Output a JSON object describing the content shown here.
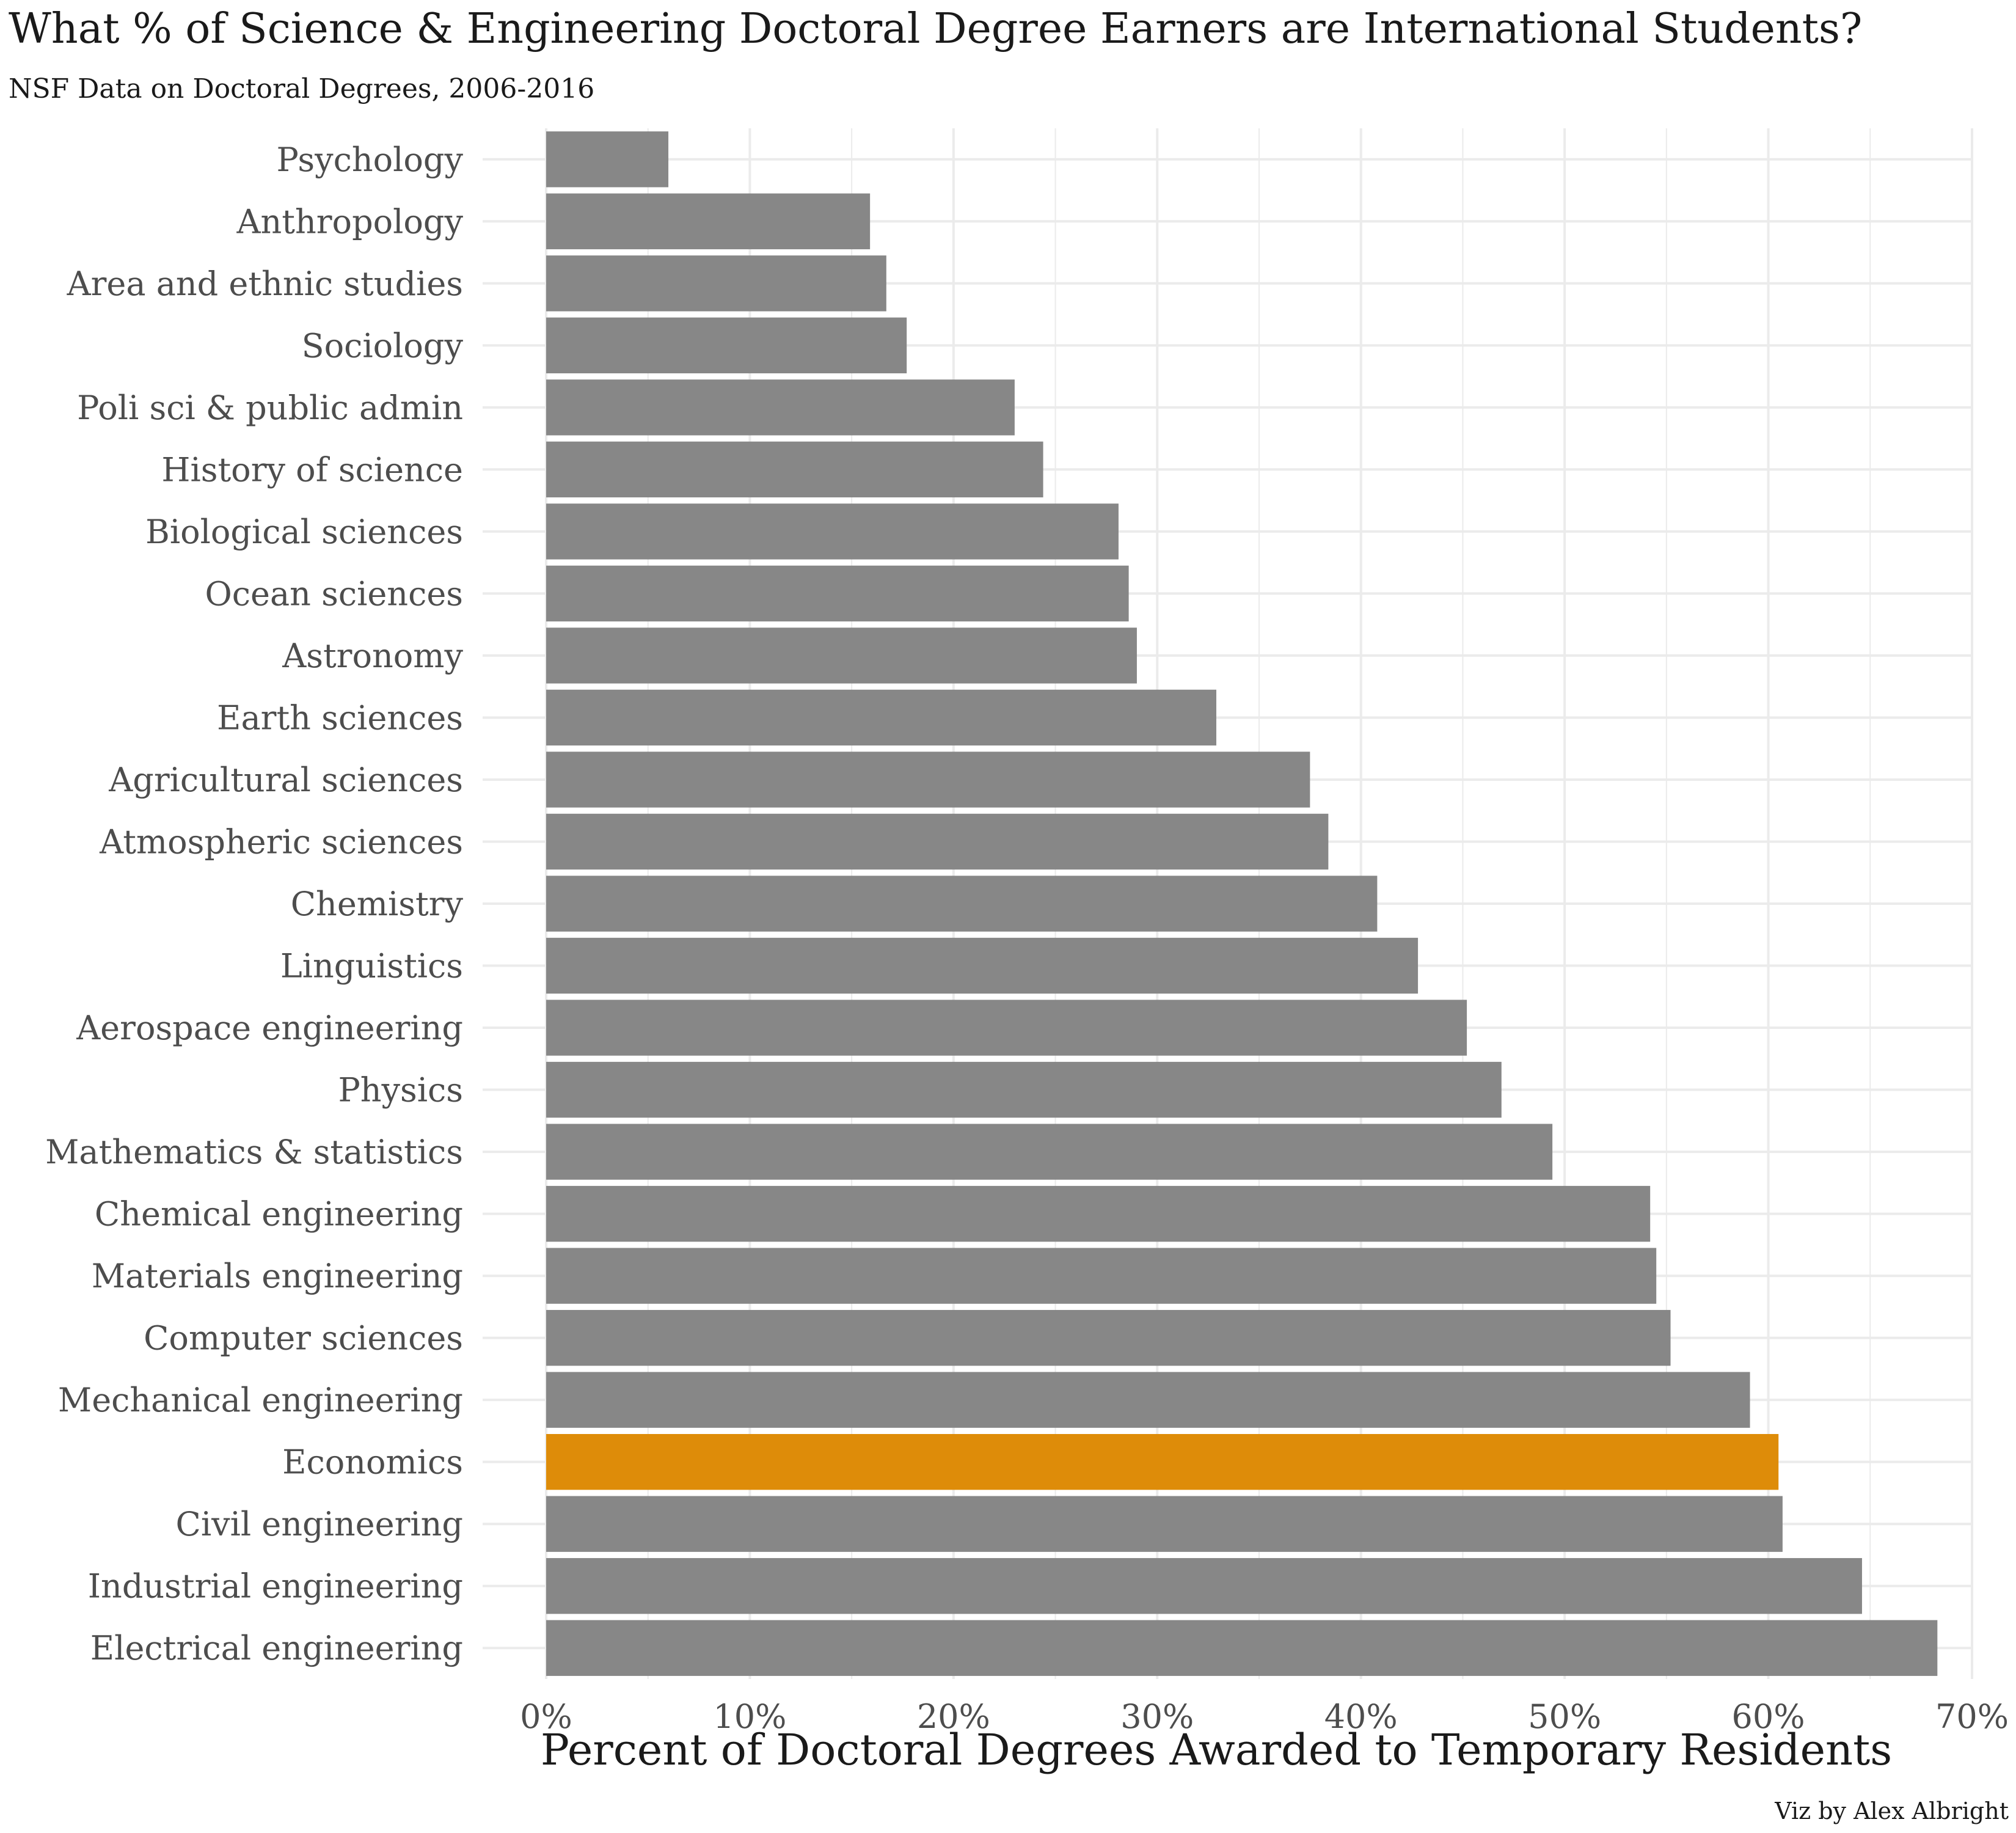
{
  "chart_data": {
    "type": "bar",
    "orientation": "horizontal",
    "title": "What % of Science & Engineering Doctoral Degree Earners are International Students?",
    "subtitle": "NSF Data on Doctoral Degrees, 2006-2016",
    "xlabel": "Percent of Doctoral Degrees Awarded to Temporary Residents",
    "ylabel": "",
    "caption": "Viz by Alex Albright",
    "xlim": [
      0,
      70
    ],
    "xticks": [
      0,
      10,
      20,
      30,
      40,
      50,
      60,
      70
    ],
    "xtick_labels": [
      "0%",
      "10%",
      "20%",
      "30%",
      "40%",
      "50%",
      "60%",
      "70%"
    ],
    "grid": true,
    "colors": {
      "default": "#878787",
      "highlight": "#DE8C09",
      "grid": "#EBEBEB"
    },
    "highlight": "Economics",
    "categories": [
      "Psychology",
      "Anthropology",
      "Area and ethnic studies",
      "Sociology",
      "Poli sci & public admin",
      "History of science",
      "Biological sciences",
      "Ocean sciences",
      "Astronomy",
      "Earth sciences",
      "Agricultural sciences",
      "Atmospheric sciences",
      "Chemistry",
      "Linguistics",
      "Aerospace engineering",
      "Physics",
      "Mathematics & statistics",
      "Chemical engineering",
      "Materials engineering",
      "Computer sciences",
      "Mechanical engineering",
      "Economics",
      "Civil engineering",
      "Industrial engineering",
      "Electrical engineering"
    ],
    "values": [
      6.0,
      15.9,
      16.7,
      17.7,
      23.0,
      24.4,
      28.1,
      28.6,
      29.0,
      32.9,
      37.5,
      38.4,
      40.8,
      42.8,
      45.2,
      46.9,
      49.4,
      54.2,
      54.5,
      55.2,
      59.1,
      60.5,
      60.7,
      64.6,
      68.3
    ]
  }
}
